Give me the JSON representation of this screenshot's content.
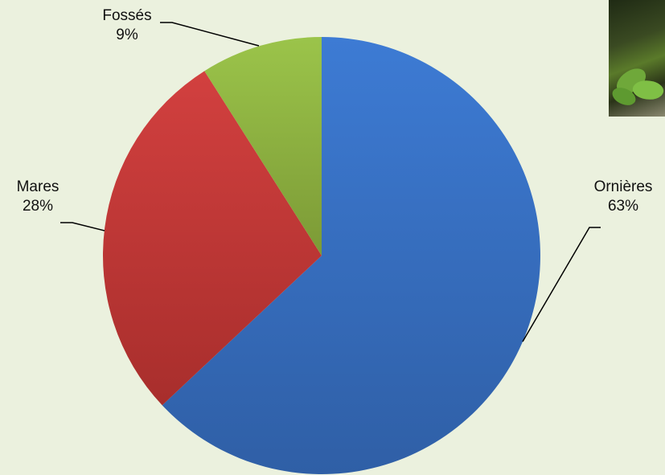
{
  "chart_data": {
    "type": "pie",
    "title": "",
    "slices": [
      {
        "label": "Ornières",
        "value": 63,
        "value_label": "63%",
        "color": "#3a72c6"
      },
      {
        "label": "Mares",
        "value": 28,
        "value_label": "28%",
        "color": "#c0393b"
      },
      {
        "label": "Fossés",
        "value": 9,
        "value_label": "9%",
        "color": "#92b044"
      }
    ],
    "start": "12 o'clock",
    "direction": "clockwise",
    "legend": "none",
    "labels": "outside with leader lines"
  },
  "colors": {
    "background": "#ebf1de"
  },
  "decor": {
    "photo": "photo-thumbnail"
  }
}
